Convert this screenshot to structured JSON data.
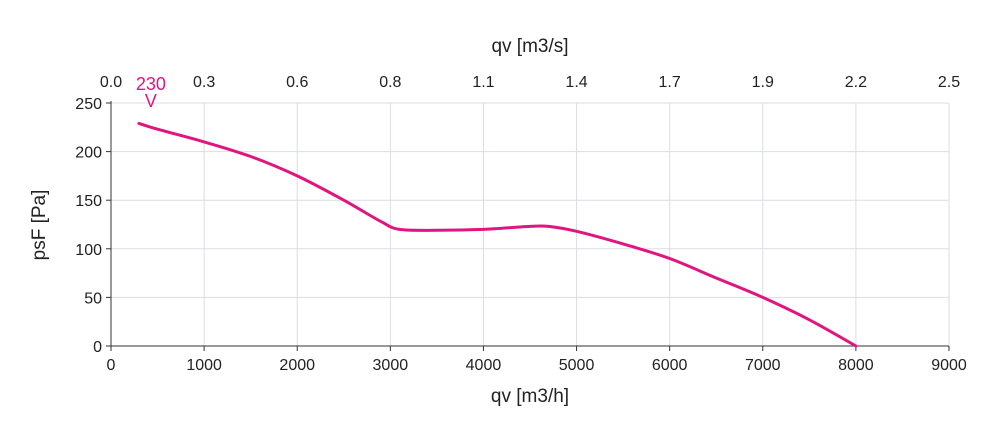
{
  "chart_data": {
    "type": "line",
    "xlabel": "qv [m3/h]",
    "ylabel": "psF [Pa]",
    "x2label": "qv [m3/s]",
    "xlim": [
      0,
      9000
    ],
    "ylim": [
      0,
      250
    ],
    "x_ticks": [
      "0",
      "1000",
      "2000",
      "3000",
      "4000",
      "5000",
      "6000",
      "7000",
      "8000",
      "9000"
    ],
    "y_ticks": [
      "0",
      "50",
      "100",
      "150",
      "200",
      "250"
    ],
    "x2_ticks": [
      "0.0",
      "0.3",
      "0.6",
      "0.8",
      "1.1",
      "1.4",
      "1.7",
      "1.9",
      "2.2",
      "2.5"
    ],
    "grid": true,
    "colors": {
      "curve": "#e0157f",
      "grid": "#d9dde8",
      "axis": "#333333",
      "text": "#222222"
    },
    "series": [
      {
        "name": "230 V",
        "x": [
          300,
          500,
          1000,
          1500,
          2000,
          2500,
          2900,
          3100,
          3500,
          4000,
          4500,
          4700,
          5000,
          5500,
          6000,
          6500,
          7000,
          7500,
          8000
        ],
        "y": [
          229,
          223,
          210,
          195,
          175,
          150,
          128,
          120,
          119,
          120,
          123,
          123,
          118,
          105,
          90,
          70,
          50,
          27,
          0
        ]
      }
    ],
    "series_label_lines": [
      "230",
      "V"
    ]
  }
}
